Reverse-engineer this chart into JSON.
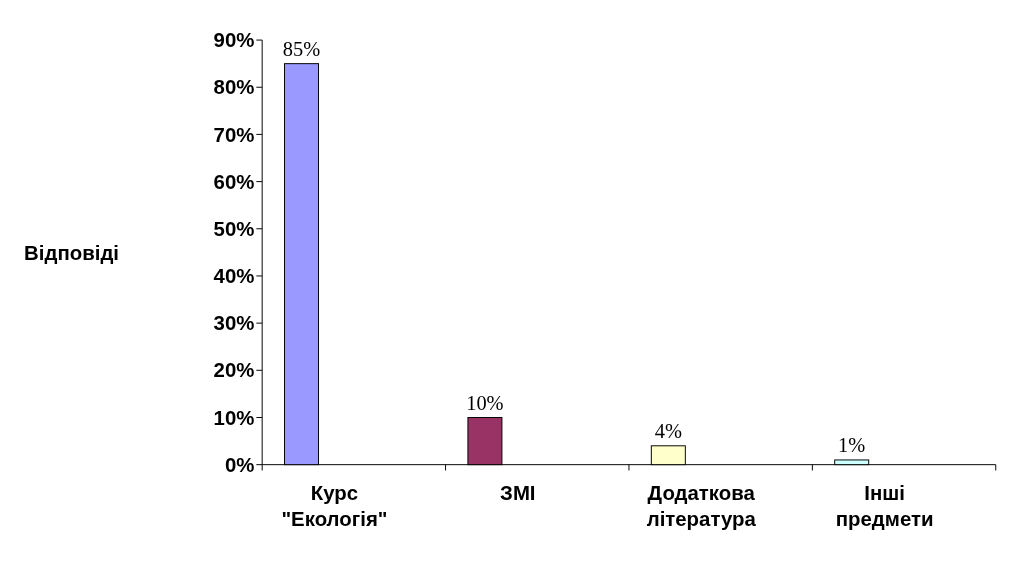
{
  "chart_data": {
    "type": "bar",
    "ylabel": "Відповіді",
    "categories": [
      "Курс \"Екологія\"",
      "ЗМІ",
      "Додаткова література",
      "Інші предмети"
    ],
    "values": [
      85,
      10,
      4,
      1
    ],
    "colors": [
      "#9999ff",
      "#993366",
      "#ffffcc",
      "#ccffff"
    ],
    "value_labels": [
      "85%",
      "10%",
      "4%",
      "1%"
    ],
    "ylim": [
      0,
      90
    ],
    "yticks": [
      {
        "value": 0,
        "label": "0%"
      },
      {
        "value": 10,
        "label": "10%"
      },
      {
        "value": 20,
        "label": "20%"
      },
      {
        "value": 30,
        "label": "30%"
      },
      {
        "value": 40,
        "label": "40%"
      },
      {
        "value": 50,
        "label": "50%"
      },
      {
        "value": 60,
        "label": "60%"
      },
      {
        "value": 70,
        "label": "70%"
      },
      {
        "value": 80,
        "label": "80%"
      },
      {
        "value": 90,
        "label": "90%"
      }
    ],
    "grid": false
  }
}
